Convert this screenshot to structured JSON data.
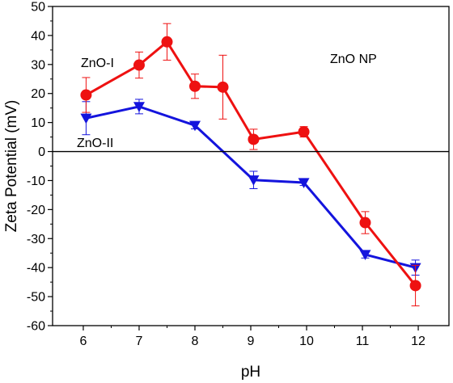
{
  "chart_data": {
    "type": "line",
    "title": "",
    "xlabel": "pH",
    "ylabel": "Zeta Potential (mV)",
    "xlim": [
      5.45,
      12.55
    ],
    "ylim": [
      -60,
      50
    ],
    "xticks": [
      6,
      7,
      8,
      9,
      10,
      11,
      12
    ],
    "yticks": [
      -60,
      -50,
      -40,
      -30,
      -20,
      -10,
      0,
      10,
      20,
      30,
      40,
      50
    ],
    "grid": false,
    "reference_line": 0,
    "annotations": [
      "ZnO NP"
    ],
    "series": [
      {
        "name": "ZnO-I",
        "color": "#ee1111",
        "marker": "circle",
        "x": [
          6.05,
          7.0,
          7.5,
          8.0,
          8.5,
          9.05,
          9.95,
          11.05,
          11.95
        ],
        "y": [
          19.5,
          29.8,
          37.8,
          22.5,
          22.2,
          4.2,
          6.8,
          -24.5,
          -46.2
        ],
        "err": [
          6.0,
          4.5,
          6.3,
          4.2,
          11.0,
          3.5,
          1.8,
          3.8,
          7.0
        ]
      },
      {
        "name": "ZnO-II",
        "color": "#1414dd",
        "marker": "triangle-down",
        "x": [
          6.05,
          7.0,
          8.0,
          9.05,
          9.95,
          11.05,
          11.95
        ],
        "y": [
          11.5,
          15.5,
          9.0,
          -9.8,
          -10.7,
          -35.5,
          -40.0
        ],
        "err": [
          5.7,
          2.5,
          1.2,
          3.0,
          1.0,
          1.2,
          2.6
        ]
      }
    ]
  }
}
